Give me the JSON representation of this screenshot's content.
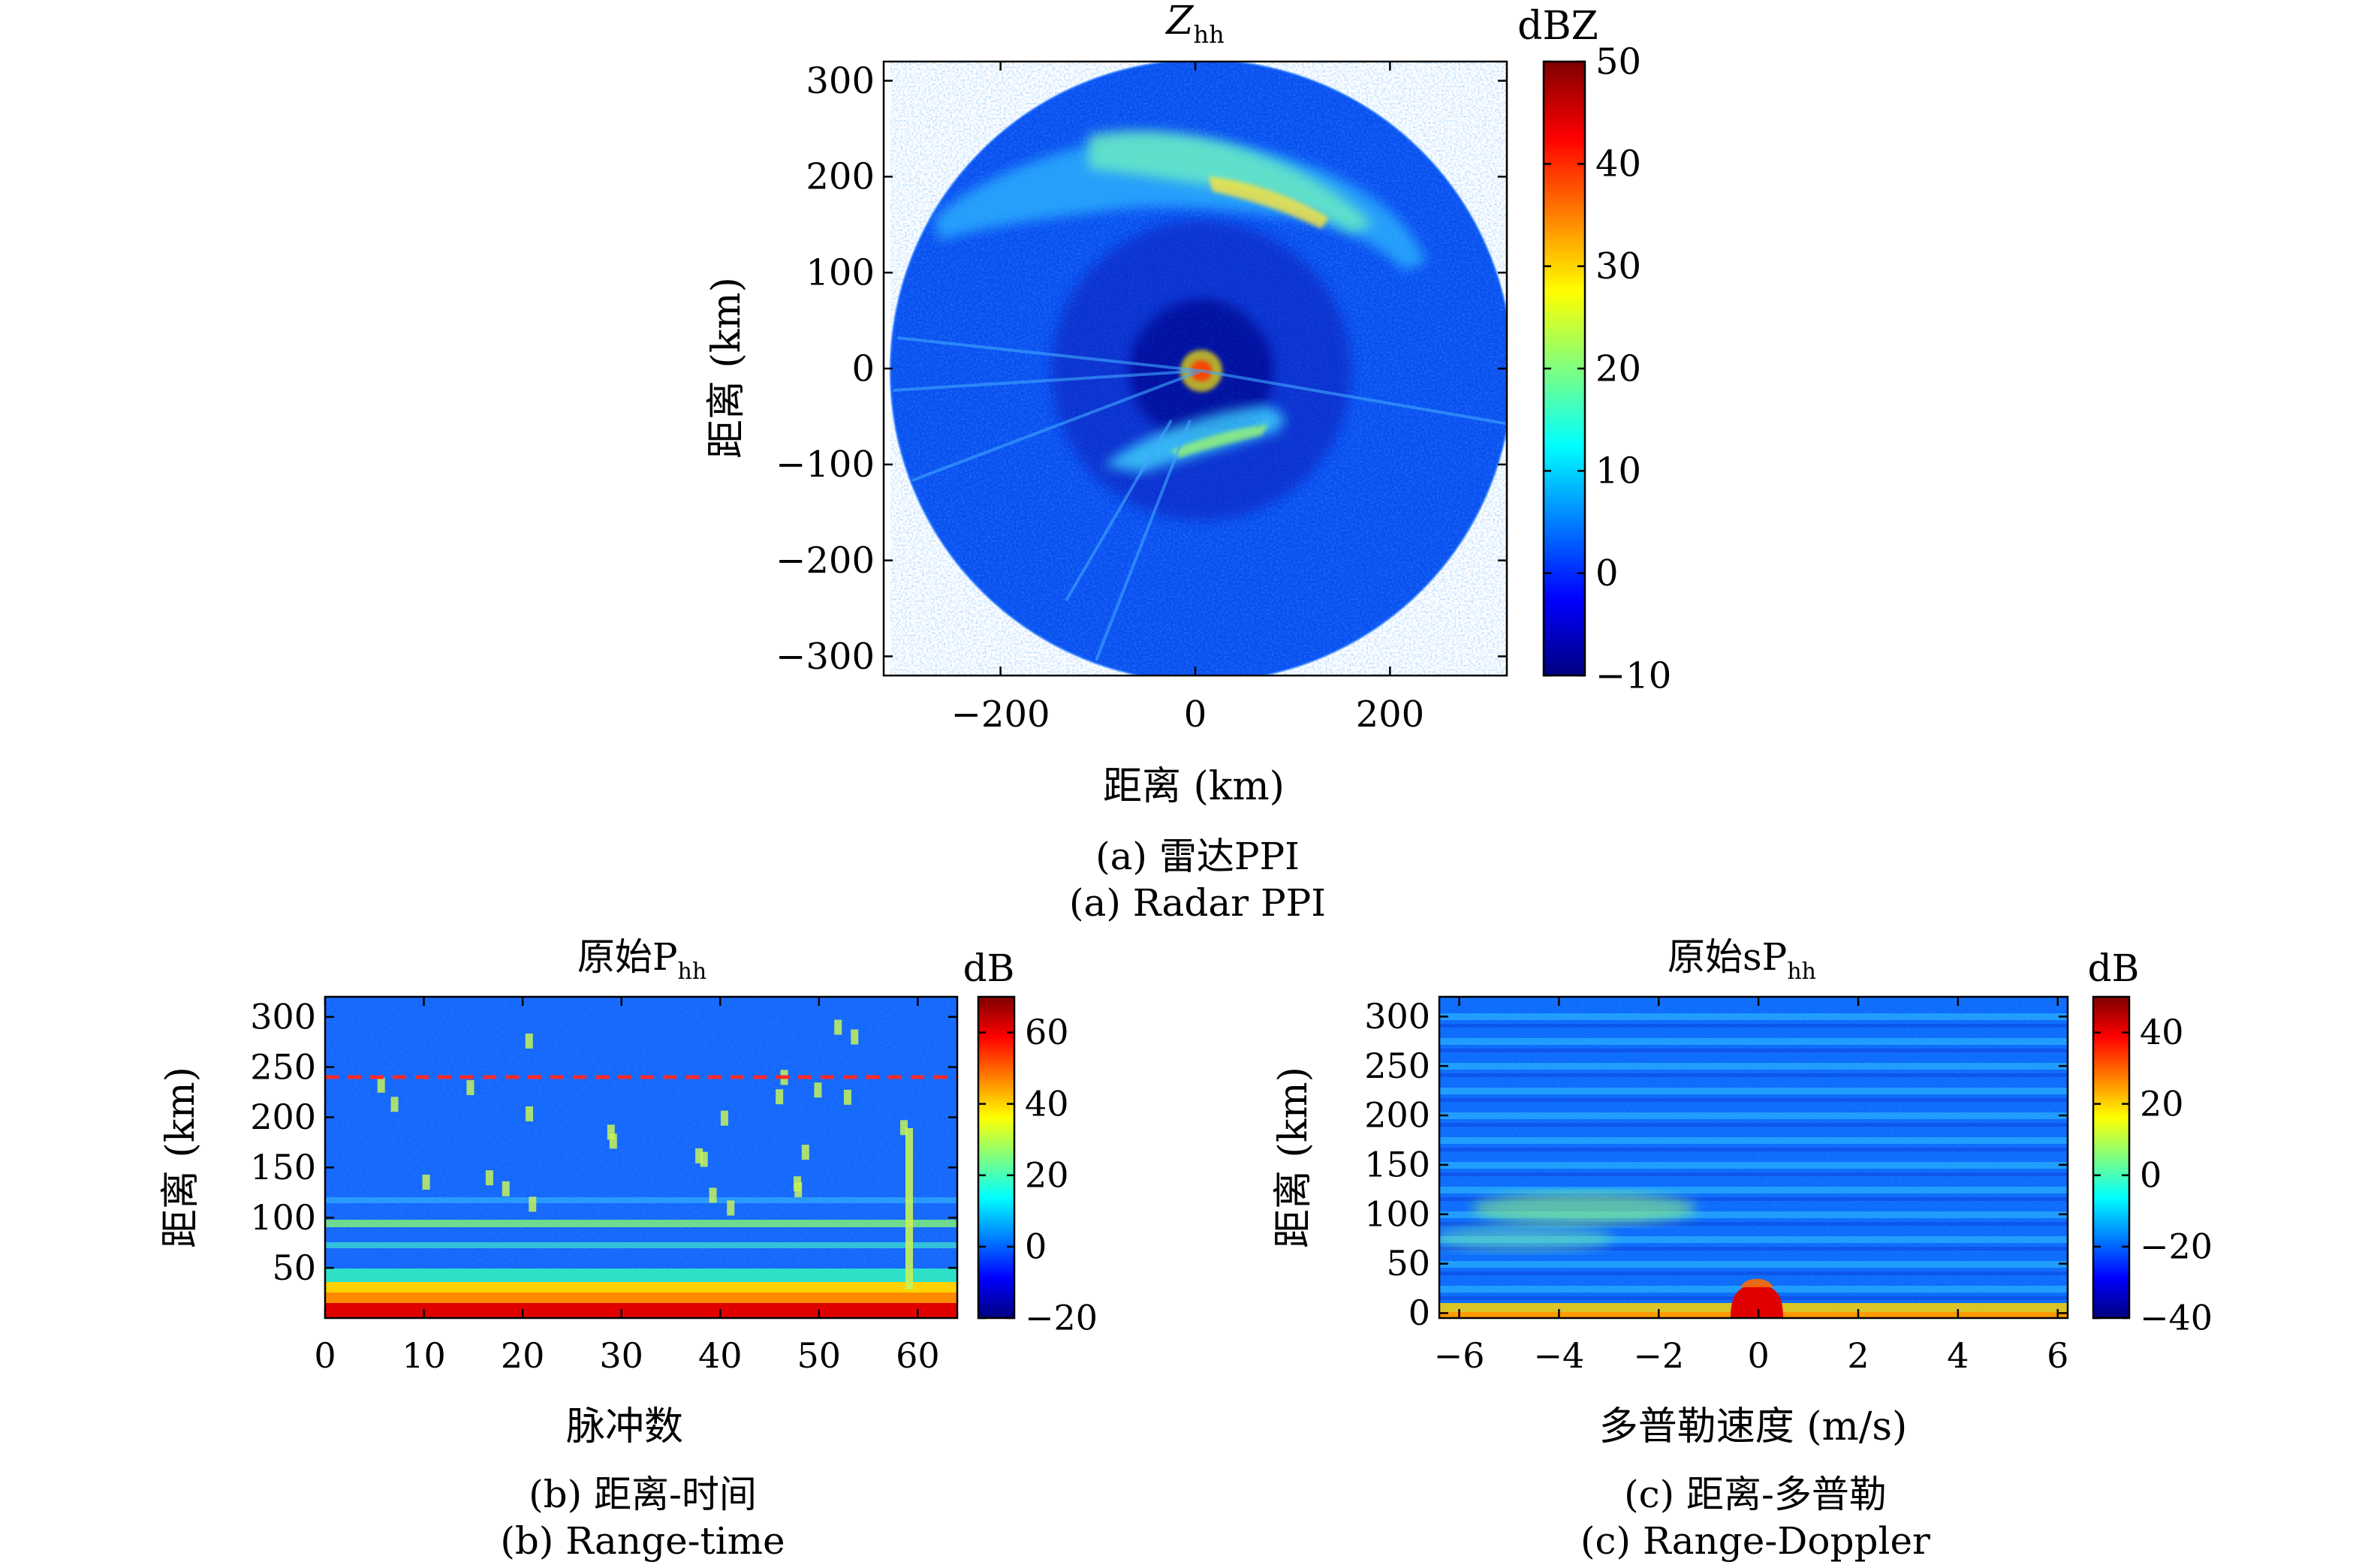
{
  "colors": {
    "jet": [
      "#00007f",
      "#0000ff",
      "#007fff",
      "#00ffff",
      "#7fff7f",
      "#ffff00",
      "#ff7f00",
      "#ff0000",
      "#7f0000"
    ],
    "dashed_line": "#ff2a2a"
  },
  "chart_data": [
    {
      "type": "heatmap",
      "title_main": "Z",
      "title_sub": "hh",
      "xlabel": "距离 (km)",
      "ylabel": "距离 (km)",
      "xlim": [
        -320,
        320
      ],
      "ylim": [
        -320,
        320
      ],
      "xticks": [
        -200,
        0,
        200
      ],
      "xtick_labels": [
        "−200",
        "0",
        "200"
      ],
      "yticks": [
        300,
        200,
        100,
        0,
        -100,
        -200,
        -300
      ],
      "ytick_labels": [
        "300",
        "200",
        "100",
        "0",
        "−100",
        "−200",
        "−300"
      ],
      "radar_range_km": 320,
      "colorbar": {
        "label": "dBZ",
        "range": [
          -10,
          50
        ],
        "ticks": [
          50,
          40,
          30,
          20,
          10,
          0,
          -10
        ],
        "tick_labels": [
          "50",
          "40",
          "30",
          "20",
          "10",
          "0",
          "−10"
        ]
      },
      "caption_cn": "(a) 雷达PPI",
      "caption_en": "(a) Radar PPI"
    },
    {
      "type": "heatmap",
      "title_main": "原始P",
      "title_sub": "hh",
      "xlabel": "脉冲数",
      "ylabel": "距离 (km)",
      "xlim": [
        0,
        64
      ],
      "ylim": [
        0,
        320
      ],
      "xticks": [
        0,
        10,
        20,
        30,
        40,
        50,
        60
      ],
      "xtick_labels": [
        "0",
        "10",
        "20",
        "30",
        "40",
        "50",
        "60"
      ],
      "yticks": [
        300,
        250,
        200,
        150,
        100,
        50
      ],
      "ytick_labels": [
        "300",
        "250",
        "200",
        "150",
        "100",
        "50"
      ],
      "dashed_line_range_km": 240,
      "colorbar": {
        "label": "dB",
        "range": [
          -20,
          70
        ],
        "ticks": [
          60,
          40,
          20,
          0,
          -20
        ],
        "tick_labels": [
          "60",
          "40",
          "20",
          "0",
          "−20"
        ]
      },
      "caption_cn": "(b) 距离-时间",
      "caption_en": "(b) Range-time"
    },
    {
      "type": "heatmap",
      "title_main": "原始sP",
      "title_sub": "hh",
      "xlabel": "多普勒速度 (m/s)",
      "ylabel": "距离 (km)",
      "xlim": [
        -6.4,
        6.2
      ],
      "ylim": [
        -5,
        320
      ],
      "xticks": [
        -6,
        -4,
        -2,
        0,
        2,
        4,
        6
      ],
      "xtick_labels": [
        "−6",
        "−4",
        "−2",
        "0",
        "2",
        "4",
        "6"
      ],
      "yticks": [
        300,
        250,
        200,
        150,
        100,
        50,
        0
      ],
      "ytick_labels": [
        "300",
        "250",
        "200",
        "150",
        "100",
        "50",
        "0"
      ],
      "colorbar": {
        "label": "dB",
        "range": [
          -40,
          50
        ],
        "ticks": [
          40,
          20,
          0,
          -20,
          -40
        ],
        "tick_labels": [
          "40",
          "20",
          "0",
          "−20",
          "−40"
        ]
      },
      "caption_cn": "(c) 距离-多普勒",
      "caption_en": "(c) Range-Doppler"
    }
  ]
}
